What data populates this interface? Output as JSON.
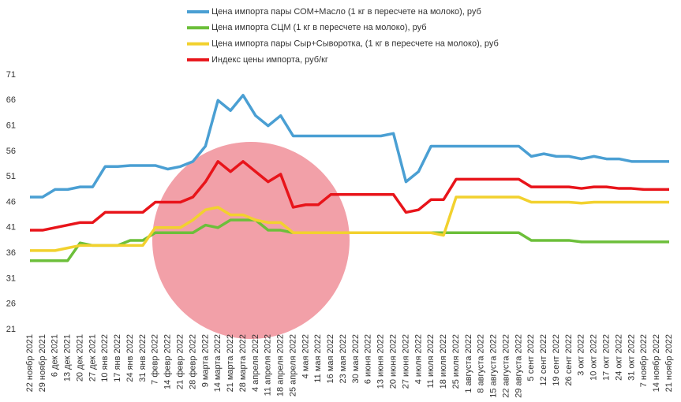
{
  "chart_data": {
    "type": "line",
    "categories": [
      "22 ноябр 2021",
      "29 ноябр 2021",
      "6 дек 2021",
      "13 дек 2021",
      "20 дек 2021",
      "27 дек 2021",
      "10 янв 2022",
      "17 янв 2022",
      "24 янв 2022",
      "31 янв 2022",
      "7 февр 2022",
      "14 февр 2022",
      "21 февр 2022",
      "28 февр 2022",
      "9 марта 2022",
      "14 марта 2022",
      "21 марта 2022",
      "28 марта 2022",
      "4 апреля 2022",
      "11 апреля 2022",
      "18 апреля 2022",
      "25 апреля 2022",
      "4 мая 2022",
      "11 мая 2022",
      "16 мая 2022",
      "23 мая 2022",
      "30 мая 2022",
      "6 июня 2022",
      "13 июня 2022",
      "20 июня 2022",
      "27 июня 2022",
      "4 июля 2022",
      "11 июля 2022",
      "18 июля 2022",
      "25 июля 2022",
      "1 августа 2022",
      "8 августа 2022",
      "15 августа 2022",
      "22 августа 2022",
      "29 августа 2022",
      "5 сент 2022",
      "12 сент 2022",
      "19 сент 2022",
      "26 сент 2022",
      "3 окт 2022",
      "10 окт 2022",
      "17 окт 2022",
      "24 окт 2022",
      "31 окт 2022",
      "7 ноябр 2022",
      "14 ноябр 2022",
      "21 ноябр 2022"
    ],
    "series": [
      {
        "name": "Цена импорта пары СОМ+Масло  (1 кг в пересчете на молоко), руб",
        "color": "#4a9fd3",
        "values": [
          47,
          47,
          48.5,
          48.5,
          49,
          49,
          53,
          53,
          53.2,
          53.2,
          53.2,
          52.5,
          53,
          54,
          57,
          66,
          64,
          67,
          63,
          61,
          63,
          59,
          59,
          59,
          59,
          59,
          59,
          59,
          59,
          59.5,
          50,
          52,
          57,
          57,
          57,
          57,
          57,
          57,
          57,
          57,
          55,
          55.5,
          55,
          55,
          54.5,
          55,
          54.5,
          54.5,
          54,
          54,
          54,
          54
        ]
      },
      {
        "name": "Цена импорта СЦМ (1 кг в пересчете на молоко), руб",
        "color": "#6cbf3a",
        "values": [
          34.5,
          34.5,
          34.5,
          34.5,
          38,
          37.5,
          37.5,
          37.5,
          38.5,
          38.5,
          40,
          40,
          40,
          40,
          41.5,
          41,
          42.5,
          42.5,
          42.5,
          40.5,
          40.5,
          40,
          40,
          40,
          40,
          40,
          40,
          40,
          40,
          40,
          40,
          40,
          40,
          40,
          40,
          40,
          40,
          40,
          40,
          40,
          38.5,
          38.5,
          38.5,
          38.5,
          38.2,
          38.2,
          38.2,
          38.2,
          38.2,
          38.2,
          38.2,
          38.2
        ]
      },
      {
        "name": "Цена импорта пары Сыр+Сыворотка, (1 кг в пересчете на молоко), руб",
        "color": "#f2d12e",
        "values": [
          36.5,
          36.5,
          36.5,
          37,
          37.5,
          37.5,
          37.5,
          37.5,
          37.5,
          37.5,
          41,
          41,
          41,
          42.5,
          44.5,
          45,
          43.5,
          43.5,
          42.5,
          42,
          42,
          40,
          40,
          40,
          40,
          40,
          40,
          40,
          40,
          40,
          40,
          40,
          40,
          39.5,
          47,
          47,
          47,
          47,
          47,
          47,
          46,
          46,
          46,
          46,
          45.8,
          46,
          46,
          46,
          46,
          46,
          46,
          46
        ]
      },
      {
        "name": "Индекс цены импорта, руб/кг",
        "color": "#e8141a",
        "values": [
          40.5,
          40.5,
          41,
          41.5,
          42,
          42,
          44,
          44,
          44,
          44,
          46,
          46,
          46,
          47,
          50,
          54,
          52,
          54,
          52,
          50,
          51.5,
          45,
          45.5,
          45.5,
          47.5,
          47.5,
          47.5,
          47.5,
          47.5,
          47.5,
          44,
          44.5,
          46.5,
          46.5,
          50.5,
          50.5,
          50.5,
          50.5,
          50.5,
          50.5,
          49,
          49,
          49,
          49,
          48.7,
          49,
          49,
          48.7,
          48.7,
          48.5,
          48.5,
          48.5
        ]
      }
    ],
    "ylim": [
      21,
      71
    ],
    "yticks": [
      21,
      26,
      31,
      36,
      41,
      46,
      51,
      56,
      61,
      66,
      71
    ]
  }
}
